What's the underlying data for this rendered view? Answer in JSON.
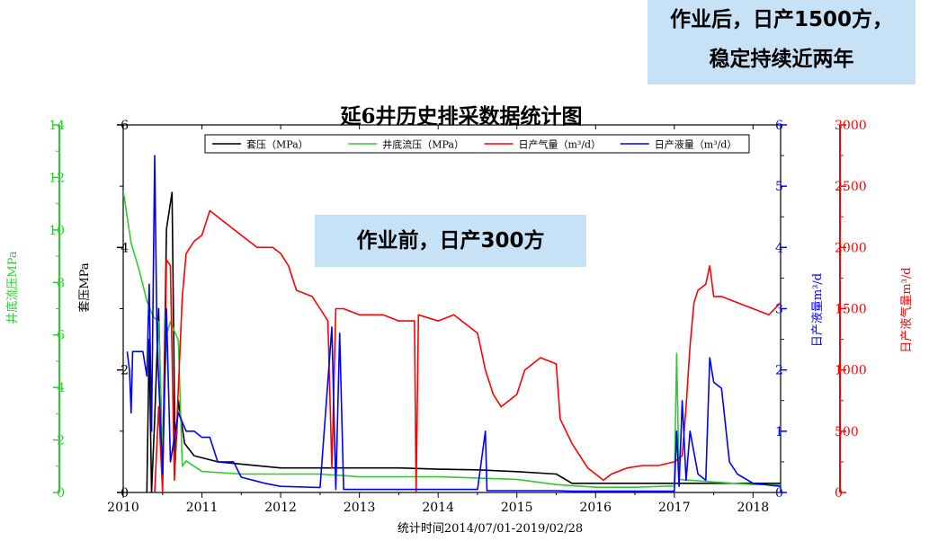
{
  "callouts": {
    "after_line1": "作业后，日产1500方，",
    "after_line2": "稳定持续近两年",
    "before": "作业前，日产300方"
  },
  "chart_data": {
    "type": "line",
    "title": "延6井历史排采数据统计图",
    "xlabel": "统计时间2014/07/01-2019/02/28",
    "x_ticks": [
      "2010",
      "2011",
      "2012",
      "2013",
      "2014",
      "2015",
      "2016",
      "2017",
      "2018"
    ],
    "xlim": [
      2010.0,
      2018.35
    ],
    "legend_position": "top-center",
    "axes": {
      "casing_pressure": {
        "label": "套压MPa",
        "color": "#000000",
        "side": "left-inner",
        "ylim": [
          0,
          6
        ],
        "ticks": [
          "0",
          "2",
          "4",
          "6"
        ]
      },
      "bottom_flow_pressure": {
        "label": "井底流压MPa",
        "color": "#2ecc2e",
        "side": "left-outer",
        "ylim": [
          0,
          14
        ],
        "ticks": [
          "0",
          "2",
          "4",
          "6",
          "8",
          "10",
          "12",
          "14"
        ]
      },
      "liquid": {
        "label": "日产液量m³/d",
        "color": "#0000ff",
        "side": "right-inner",
        "ylim": [
          0,
          6
        ],
        "ticks": [
          "0",
          "1",
          "2",
          "3",
          "4",
          "5",
          "6"
        ]
      },
      "gas": {
        "label": "日产液气量m³/d",
        "color": "#ff0000",
        "side": "right-outer",
        "ylim": [
          0,
          3000
        ],
        "ticks": [
          "0",
          "500",
          "1000",
          "1500",
          "2000",
          "2500",
          "3000"
        ]
      }
    },
    "series": [
      {
        "name": "套压（MPa）",
        "axis": "casing_pressure",
        "color": "#000000",
        "points": [
          [
            2010.3,
            0
          ],
          [
            2010.33,
            2.5
          ],
          [
            2010.36,
            0
          ],
          [
            2010.4,
            1.2
          ],
          [
            2010.45,
            3
          ],
          [
            2010.5,
            0.2
          ],
          [
            2010.55,
            4.3
          ],
          [
            2010.62,
            4.9
          ],
          [
            2010.66,
            0.5
          ],
          [
            2010.7,
            1.5
          ],
          [
            2010.78,
            0.8
          ],
          [
            2010.9,
            0.6
          ],
          [
            2011.2,
            0.5
          ],
          [
            2011.6,
            0.45
          ],
          [
            2012.0,
            0.4
          ],
          [
            2012.6,
            0.4
          ],
          [
            2013.0,
            0.4
          ],
          [
            2013.5,
            0.4
          ],
          [
            2014.0,
            0.38
          ],
          [
            2014.5,
            0.37
          ],
          [
            2015.0,
            0.34
          ],
          [
            2015.5,
            0.3
          ],
          [
            2015.7,
            0.15
          ],
          [
            2016.0,
            0.15
          ],
          [
            2016.5,
            0.15
          ],
          [
            2017.0,
            0.15
          ],
          [
            2017.5,
            0.15
          ],
          [
            2018.0,
            0.15
          ],
          [
            2018.35,
            0.15
          ]
        ]
      },
      {
        "name": "井底流压（MPa）",
        "axis": "bottom_flow_pressure",
        "color": "#2ecc2e",
        "points": [
          [
            2010.0,
            11.5
          ],
          [
            2010.1,
            9.5
          ],
          [
            2010.2,
            8.5
          ],
          [
            2010.3,
            7.3
          ],
          [
            2010.38,
            6.7
          ],
          [
            2010.45,
            6.5
          ],
          [
            2010.5,
            1.5
          ],
          [
            2010.55,
            6.0
          ],
          [
            2010.6,
            6.5
          ],
          [
            2010.7,
            5.8
          ],
          [
            2010.75,
            1.0
          ],
          [
            2010.8,
            1.2
          ],
          [
            2011.0,
            0.8
          ],
          [
            2011.5,
            0.7
          ],
          [
            2012.0,
            0.7
          ],
          [
            2012.5,
            0.7
          ],
          [
            2013.0,
            0.6
          ],
          [
            2013.5,
            0.6
          ],
          [
            2014.0,
            0.6
          ],
          [
            2014.5,
            0.55
          ],
          [
            2015.0,
            0.5
          ],
          [
            2015.5,
            0.3
          ],
          [
            2016.0,
            0.2
          ],
          [
            2016.5,
            0.2
          ],
          [
            2017.0,
            0.25
          ],
          [
            2017.03,
            5.3
          ],
          [
            2017.06,
            0.5
          ],
          [
            2017.5,
            0.4
          ],
          [
            2018.0,
            0.3
          ],
          [
            2018.35,
            0.3
          ]
        ]
      },
      {
        "name": "日产气量（m³/d）",
        "axis": "gas",
        "color": "#ff0000",
        "points": [
          [
            2010.4,
            0
          ],
          [
            2010.45,
            700
          ],
          [
            2010.5,
            0
          ],
          [
            2010.55,
            1900
          ],
          [
            2010.6,
            1850
          ],
          [
            2010.65,
            100
          ],
          [
            2010.75,
            1600
          ],
          [
            2010.8,
            1950
          ],
          [
            2010.9,
            2050
          ],
          [
            2011.0,
            2100
          ],
          [
            2011.1,
            2300
          ],
          [
            2011.3,
            2200
          ],
          [
            2011.5,
            2100
          ],
          [
            2011.7,
            2000
          ],
          [
            2011.9,
            2000
          ],
          [
            2012.0,
            1950
          ],
          [
            2012.1,
            1850
          ],
          [
            2012.2,
            1650
          ],
          [
            2012.4,
            1600
          ],
          [
            2012.5,
            1500
          ],
          [
            2012.6,
            1400
          ],
          [
            2012.65,
            200
          ],
          [
            2012.7,
            1500
          ],
          [
            2012.8,
            1500
          ],
          [
            2013.0,
            1450
          ],
          [
            2013.3,
            1450
          ],
          [
            2013.5,
            1400
          ],
          [
            2013.7,
            1400
          ],
          [
            2013.72,
            0
          ],
          [
            2013.75,
            1450
          ],
          [
            2014.0,
            1400
          ],
          [
            2014.2,
            1450
          ],
          [
            2014.4,
            1350
          ],
          [
            2014.5,
            1300
          ],
          [
            2014.6,
            1000
          ],
          [
            2014.7,
            800
          ],
          [
            2014.8,
            700
          ],
          [
            2014.9,
            750
          ],
          [
            2015.0,
            800
          ],
          [
            2015.1,
            1000
          ],
          [
            2015.3,
            1100
          ],
          [
            2015.5,
            1050
          ],
          [
            2015.55,
            600
          ],
          [
            2015.7,
            400
          ],
          [
            2015.8,
            300
          ],
          [
            2015.9,
            200
          ],
          [
            2016.0,
            150
          ],
          [
            2016.1,
            100
          ],
          [
            2016.2,
            150
          ],
          [
            2016.4,
            200
          ],
          [
            2016.6,
            220
          ],
          [
            2016.8,
            220
          ],
          [
            2017.0,
            250
          ],
          [
            2017.1,
            300
          ],
          [
            2017.15,
            700
          ],
          [
            2017.2,
            1200
          ],
          [
            2017.25,
            1550
          ],
          [
            2017.3,
            1650
          ],
          [
            2017.4,
            1700
          ],
          [
            2017.45,
            1850
          ],
          [
            2017.5,
            1600
          ],
          [
            2017.6,
            1600
          ],
          [
            2017.8,
            1550
          ],
          [
            2018.0,
            1500
          ],
          [
            2018.2,
            1450
          ],
          [
            2018.35,
            1550
          ]
        ]
      },
      {
        "name": "日产液量（m³/d）",
        "axis": "liquid",
        "color": "#0000ff",
        "points": [
          [
            2010.05,
            2.3
          ],
          [
            2010.08,
            2.0
          ],
          [
            2010.1,
            1.3
          ],
          [
            2010.12,
            2.3
          ],
          [
            2010.25,
            2.3
          ],
          [
            2010.3,
            1.9
          ],
          [
            2010.33,
            3.4
          ],
          [
            2010.36,
            1.0
          ],
          [
            2010.4,
            5.5
          ],
          [
            2010.43,
            2.5
          ],
          [
            2010.5,
            0.3
          ],
          [
            2010.55,
            3.0
          ],
          [
            2010.6,
            0.5
          ],
          [
            2010.7,
            1.3
          ],
          [
            2010.8,
            1.0
          ],
          [
            2010.9,
            1.0
          ],
          [
            2011.0,
            0.9
          ],
          [
            2011.1,
            0.9
          ],
          [
            2011.2,
            0.5
          ],
          [
            2011.3,
            0.5
          ],
          [
            2011.4,
            0.5
          ],
          [
            2011.5,
            0.25
          ],
          [
            2011.8,
            0.15
          ],
          [
            2012.0,
            0.1
          ],
          [
            2012.5,
            0.08
          ],
          [
            2012.65,
            2.7
          ],
          [
            2012.7,
            0.05
          ],
          [
            2012.75,
            2.6
          ],
          [
            2012.8,
            0.05
          ],
          [
            2013.0,
            0.05
          ],
          [
            2013.5,
            0.05
          ],
          [
            2014.0,
            0.05
          ],
          [
            2014.5,
            0.05
          ],
          [
            2014.6,
            1.0
          ],
          [
            2014.62,
            0.03
          ],
          [
            2015.0,
            0.03
          ],
          [
            2015.5,
            0.03
          ],
          [
            2015.7,
            0.02
          ],
          [
            2016.0,
            0.02
          ],
          [
            2016.5,
            0.02
          ],
          [
            2017.0,
            0.02
          ],
          [
            2017.03,
            1.0
          ],
          [
            2017.06,
            0.1
          ],
          [
            2017.1,
            1.5
          ],
          [
            2017.15,
            0.2
          ],
          [
            2017.2,
            1.0
          ],
          [
            2017.3,
            0.3
          ],
          [
            2017.4,
            0.2
          ],
          [
            2017.45,
            2.2
          ],
          [
            2017.5,
            1.8
          ],
          [
            2017.6,
            1.7
          ],
          [
            2017.7,
            0.5
          ],
          [
            2017.8,
            0.3
          ],
          [
            2018.0,
            0.15
          ],
          [
            2018.35,
            0.1
          ]
        ]
      }
    ]
  }
}
